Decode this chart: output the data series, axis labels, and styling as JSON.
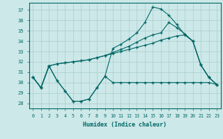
{
  "xlabel": "Humidex (Indice chaleur)",
  "bg_color": "#cce8e8",
  "grid_color": "#aacccc",
  "line_color": "#006666",
  "xlim": [
    -0.5,
    23.5
  ],
  "ylim": [
    27.5,
    37.7
  ],
  "yticks": [
    28,
    29,
    30,
    31,
    32,
    33,
    34,
    35,
    36,
    37
  ],
  "xticks": [
    0,
    1,
    2,
    3,
    4,
    5,
    6,
    7,
    8,
    9,
    10,
    11,
    12,
    13,
    14,
    15,
    16,
    17,
    18,
    19,
    20,
    21,
    22,
    23
  ],
  "s1_y": [
    30.5,
    29.5,
    31.6,
    30.2,
    29.2,
    28.2,
    28.2,
    28.4,
    29.5,
    30.6,
    30.0,
    30.0,
    30.0,
    30.0,
    30.0,
    30.0,
    30.0,
    30.0,
    30.0,
    30.0,
    30.0,
    30.0,
    30.0,
    29.8
  ],
  "s2_y": [
    30.5,
    29.5,
    31.6,
    31.8,
    31.9,
    32.0,
    32.1,
    32.2,
    32.4,
    32.6,
    32.8,
    33.0,
    33.2,
    33.4,
    33.6,
    33.8,
    34.1,
    34.3,
    34.5,
    34.6,
    34.0,
    31.7,
    30.5,
    29.8
  ],
  "s3_y": [
    30.5,
    29.5,
    31.6,
    31.8,
    31.9,
    32.0,
    32.1,
    32.2,
    32.4,
    32.6,
    32.9,
    33.2,
    33.5,
    33.9,
    34.3,
    34.6,
    34.8,
    35.8,
    35.3,
    34.7,
    34.0,
    31.7,
    30.5,
    29.8
  ],
  "s4_y": [
    30.5,
    29.5,
    31.6,
    30.2,
    29.2,
    28.2,
    28.2,
    28.4,
    29.5,
    30.6,
    33.3,
    33.7,
    34.2,
    34.8,
    35.8,
    37.3,
    37.1,
    36.5,
    35.6,
    34.6,
    34.0,
    31.7,
    30.5,
    29.8
  ]
}
